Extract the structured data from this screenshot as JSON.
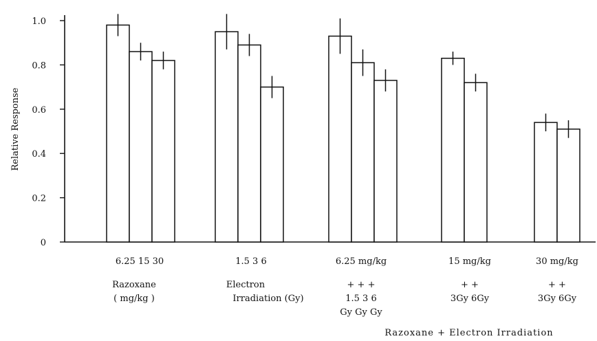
{
  "chart_data": {
    "type": "bar",
    "ylabel": "Relative Response",
    "ylim": [
      0,
      1.0
    ],
    "yticks": [
      {
        "value": 0,
        "label": "0"
      },
      {
        "value": 0.2,
        "label": "0.2"
      },
      {
        "value": 0.4,
        "label": "0.4"
      },
      {
        "value": 0.6,
        "label": "0.6"
      },
      {
        "value": 0.8,
        "label": "0.8"
      },
      {
        "value": 1.0,
        "label": "1.0"
      }
    ],
    "grid": false,
    "groups": [
      {
        "bars": [
          {
            "value": 0.98,
            "err": 0.05
          },
          {
            "value": 0.86,
            "err": 0.04
          },
          {
            "value": 0.82,
            "err": 0.04
          }
        ],
        "tick_label": "6.25 15 30",
        "label_lines": [
          "+  +  +"
        ],
        "label_lines_row2": [
          "Razoxane",
          "( mg/kg )"
        ]
      },
      {
        "bars": [
          {
            "value": 0.95,
            "err": 0.08
          },
          {
            "value": 0.89,
            "err": 0.05
          },
          {
            "value": 0.7,
            "err": 0.05
          }
        ],
        "tick_label": "1.5   3    6",
        "label_lines_row2": [
          "Electron",
          "Irradiation (Gy)"
        ]
      },
      {
        "bars": [
          {
            "value": 0.93,
            "err": 0.08
          },
          {
            "value": 0.81,
            "err": 0.06
          },
          {
            "value": 0.73,
            "err": 0.05
          }
        ],
        "tick_label": "6.25 mg/kg",
        "label_lines_row2": [
          "+    +    +",
          "1.5  3    6",
          "Gy  Gy  Gy"
        ]
      },
      {
        "bars": [
          {
            "value": 0.83,
            "err": 0.03
          },
          {
            "value": 0.72,
            "err": 0.04
          }
        ],
        "tick_label": "15 mg/kg",
        "label_lines_row2": [
          "+    +",
          "3Gy  6Gy"
        ]
      },
      {
        "bars": [
          {
            "value": 0.54,
            "err": 0.04
          },
          {
            "value": 0.51,
            "err": 0.04
          }
        ],
        "tick_label": "30 mg/kg",
        "label_lines_row2": [
          "+    +",
          "3Gy  6Gy"
        ]
      }
    ],
    "x_caption": "Razoxane + Electron Irradiation"
  }
}
